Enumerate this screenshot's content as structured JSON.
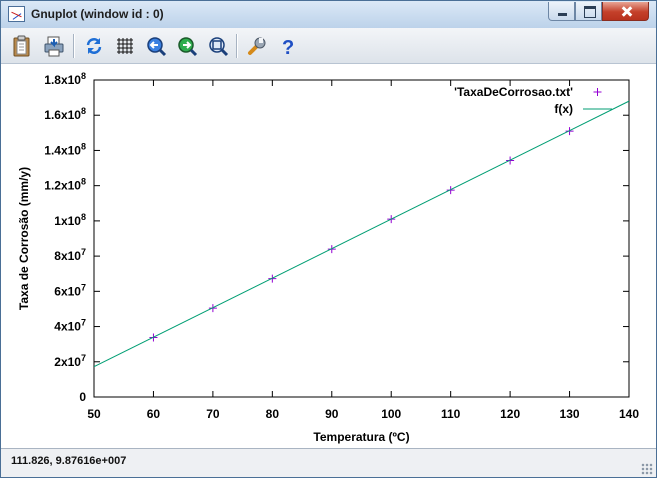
{
  "window": {
    "title": "Gnuplot (window id : 0)"
  },
  "toolbar": {
    "buttons": [
      {
        "name": "copy-to-clipboard",
        "icon": "clipboard-icon"
      },
      {
        "name": "print",
        "icon": "printer-icon"
      },
      {
        "name": "replot",
        "icon": "refresh-icon"
      },
      {
        "name": "toggle-grid",
        "icon": "grid-icon"
      },
      {
        "name": "zoom-previous",
        "icon": "zoom-previous-icon"
      },
      {
        "name": "zoom-next",
        "icon": "zoom-next-icon"
      },
      {
        "name": "autoscale",
        "icon": "zoom-fit-icon"
      },
      {
        "name": "options",
        "icon": "wrench-icon"
      },
      {
        "name": "help",
        "icon": "help-icon"
      }
    ]
  },
  "chart_data": {
    "type": "scatter",
    "xlabel": "Temperatura (ºC)",
    "ylabel": "Taxa de Corrosão (mm/y)",
    "xlim": [
      50,
      140
    ],
    "ylim": [
      0,
      180000000
    ],
    "x_ticks": [
      50,
      60,
      70,
      80,
      90,
      100,
      110,
      120,
      130,
      140
    ],
    "y_ticks": [
      {
        "value": 0,
        "mant": "0",
        "exp": ""
      },
      {
        "value": 20000000,
        "mant": "2x10",
        "exp": "7"
      },
      {
        "value": 40000000,
        "mant": "4x10",
        "exp": "7"
      },
      {
        "value": 60000000,
        "mant": "6x10",
        "exp": "7"
      },
      {
        "value": 80000000,
        "mant": "8x10",
        "exp": "7"
      },
      {
        "value": 100000000,
        "mant": "1x10",
        "exp": "8"
      },
      {
        "value": 120000000,
        "mant": "1.2x10",
        "exp": "8"
      },
      {
        "value": 140000000,
        "mant": "1.4x10",
        "exp": "8"
      },
      {
        "value": 160000000,
        "mant": "1.6x10",
        "exp": "8"
      },
      {
        "value": 180000000,
        "mant": "1.8x10",
        "exp": "8"
      }
    ],
    "grid": false,
    "legend_position": "top-right",
    "series": [
      {
        "name": "'TaxaDeCorrosao.txt'",
        "style": "points",
        "color": "#9400d3",
        "x": [
          60,
          70,
          80,
          90,
          100,
          110,
          120,
          130
        ],
        "y": [
          33800000,
          50500000,
          67200000,
          84000000,
          101000000,
          117500000,
          134300000,
          151000000
        ]
      },
      {
        "name": "f(x)",
        "style": "line",
        "color": "#009e73",
        "x": [
          50,
          140
        ],
        "y": [
          17200000,
          168000000
        ]
      }
    ]
  },
  "status": {
    "coordinates": "111.826,  9.87616e+007"
  }
}
